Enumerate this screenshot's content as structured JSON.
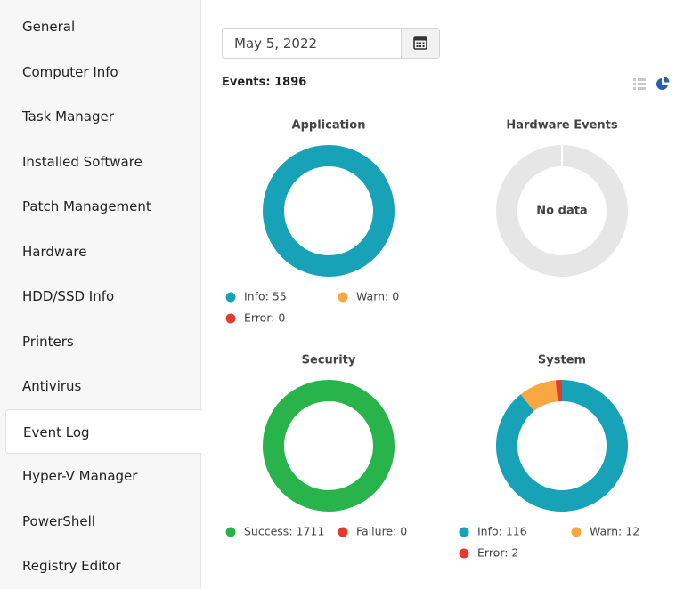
{
  "sidebar": {
    "items": [
      "General",
      "Computer Info",
      "Task Manager",
      "Installed Software",
      "Patch Management",
      "Hardware",
      "HDD/SSD Info",
      "Printers",
      "Antivirus",
      "Event Log",
      "Hyper-V Manager",
      "PowerShell",
      "Registry Editor"
    ],
    "active_index": 9
  },
  "toolbar": {
    "date": "May 5, 2022",
    "events": "Events: 1896"
  },
  "charts": [
    {
      "title": "Application",
      "legend": [
        {
          "label": "Info: 55",
          "value": 55,
          "color": "#17a2b8"
        },
        {
          "label": "Warn: 0",
          "value": 0,
          "color": "#f9a743"
        },
        {
          "label": "Error: 0",
          "value": 0,
          "color": "#e53a2f"
        }
      ]
    },
    {
      "title": "Hardware Events",
      "center_text": "No data"
    },
    {
      "title": "Security",
      "legend": [
        {
          "label": "Success: 1711",
          "value": 1711,
          "color": "#28b34b"
        },
        {
          "label": "Failure: 0",
          "value": 0,
          "color": "#e53a2f"
        }
      ]
    },
    {
      "title": "System",
      "legend": [
        {
          "label": "Info: 116",
          "value": 116,
          "color": "#17a2b8"
        },
        {
          "label": "Warn: 12",
          "value": 12,
          "color": "#f9a743"
        },
        {
          "label": "Error: 2",
          "value": 2,
          "color": "#e53a2f"
        }
      ]
    }
  ]
}
